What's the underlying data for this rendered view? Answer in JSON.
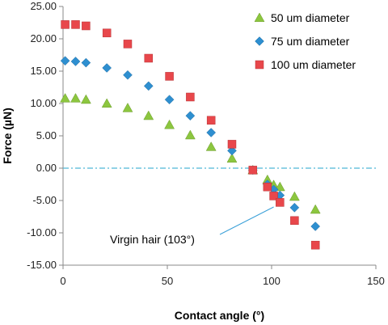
{
  "chart_data": {
    "type": "scatter",
    "title": "",
    "xlabel": "Contact angle (°)",
    "ylabel": "Force (µN)",
    "xlim": [
      0,
      150
    ],
    "ylim": [
      -15,
      25
    ],
    "x_ticks": [
      "0",
      "50",
      "100",
      "150"
    ],
    "y_ticks": [
      "25.00",
      "20.00",
      "15.00",
      "10.00",
      "5.00",
      "0.00",
      "-5.00",
      "-10.00",
      "-15.00"
    ],
    "grid": false,
    "legend_position": "top-right",
    "reference_line": {
      "y": 0,
      "style": "dash-dot",
      "color": "#4fb8d8"
    },
    "series": [
      {
        "name": "50 um diameter",
        "marker": "triangle",
        "color": "#8cc63f",
        "points": [
          [
            1,
            10.8
          ],
          [
            6,
            10.8
          ],
          [
            11,
            10.6
          ],
          [
            21,
            10.0
          ],
          [
            31,
            9.3
          ],
          [
            41,
            8.1
          ],
          [
            51,
            6.7
          ],
          [
            61,
            5.1
          ],
          [
            71,
            3.3
          ],
          [
            81,
            1.5
          ],
          [
            91,
            -0.3
          ],
          [
            98,
            -1.8
          ],
          [
            101,
            -2.6
          ],
          [
            104,
            -2.9
          ],
          [
            111,
            -4.4
          ],
          [
            121,
            -6.4
          ]
        ]
      },
      {
        "name": "75 um diameter",
        "marker": "diamond",
        "color": "#2e8fd0",
        "points": [
          [
            1,
            16.6
          ],
          [
            6,
            16.5
          ],
          [
            11,
            16.3
          ],
          [
            21,
            15.5
          ],
          [
            31,
            14.4
          ],
          [
            41,
            12.7
          ],
          [
            51,
            10.6
          ],
          [
            61,
            8.1
          ],
          [
            71,
            5.5
          ],
          [
            81,
            2.7
          ],
          [
            91,
            -0.3
          ],
          [
            98,
            -2.5
          ],
          [
            101,
            -3.3
          ],
          [
            104,
            -4.2
          ],
          [
            111,
            -6.1
          ],
          [
            121,
            -9.0
          ]
        ]
      },
      {
        "name": "100 um diameter",
        "marker": "square",
        "color": "#e8474b",
        "points": [
          [
            1,
            22.2
          ],
          [
            6,
            22.2
          ],
          [
            11,
            22.0
          ],
          [
            21,
            20.9
          ],
          [
            31,
            19.2
          ],
          [
            41,
            17.0
          ],
          [
            51,
            14.2
          ],
          [
            61,
            11.0
          ],
          [
            71,
            7.4
          ],
          [
            81,
            3.7
          ],
          [
            91,
            -0.3
          ],
          [
            98,
            -2.9
          ],
          [
            101,
            -4.3
          ],
          [
            104,
            -5.3
          ],
          [
            111,
            -8.1
          ],
          [
            121,
            -11.9
          ]
        ]
      }
    ],
    "annotation": {
      "text": "Virgin hair (103°)",
      "target": [
        101,
        -6.0
      ]
    }
  }
}
